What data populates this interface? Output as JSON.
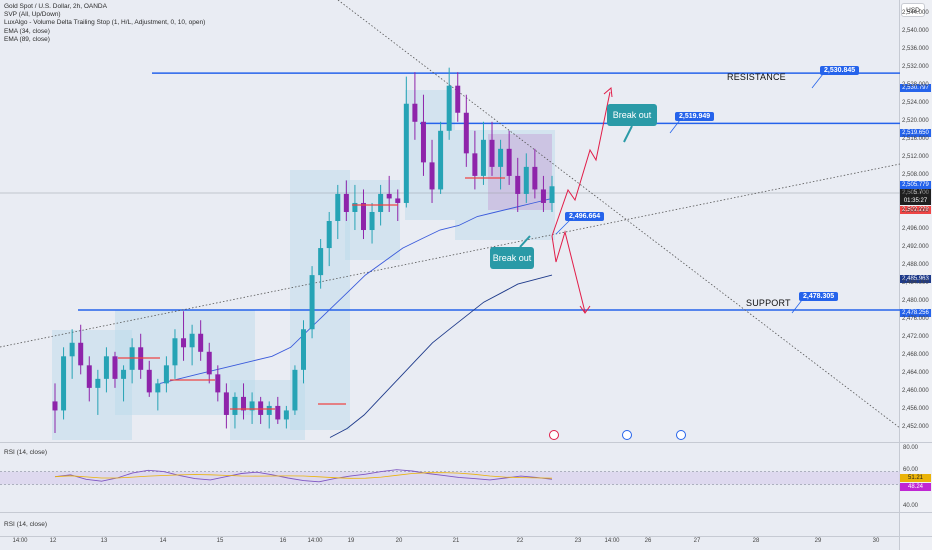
{
  "legend": {
    "title": "Gold Spot / U.S. Dollar, 2h, OANDA",
    "lines": [
      "SVP (All, Up/Down)",
      "LuxAlgo - Volume Delta Trailing Stop (1, H/L, Adjustment, 0, 10, open)",
      "EMA (34, close)",
      "EMA (89, close)"
    ]
  },
  "currency_button": "USD",
  "annotations": {
    "resistance_label": "RESISTANCE",
    "support_label": "SUPPORT",
    "breakout_up": "Break out",
    "breakout_down": "Break out",
    "tag_resistance": "2,530.845",
    "tag_mid": "2,519.949",
    "tag_pivot": "2,496.664",
    "tag_support": "2,478.305"
  },
  "axis_tags": [
    {
      "text": "2,530.797",
      "color": "#2563eb"
    },
    {
      "text": "2,519.650",
      "color": "#2563eb"
    },
    {
      "text": "2,505.779",
      "color": "#2563eb"
    },
    {
      "text": "2,505.700",
      "color": "#1f1f1f"
    },
    {
      "text": "01:35:27",
      "color": "#1f1f1f"
    },
    {
      "text": "2,502.228",
      "color": "#ef4444"
    },
    {
      "text": "2,485.963",
      "color": "#1e3a8a"
    },
    {
      "text": "2,478.256",
      "color": "#2563eb"
    }
  ],
  "rsi_panes": [
    {
      "label": "RSI (14, close)",
      "levels": [
        "80.00",
        "60.00",
        "51.21",
        "48.24",
        "40.00"
      ]
    },
    {
      "label": "RSI (14, close)"
    }
  ],
  "colors": {
    "up": "#26a3b5",
    "down": "#8e24aa",
    "level_line": "#2563eb",
    "ema34": "#3b5bdb",
    "ema89": "#1e3a8a",
    "arrow": "#e11d48"
  },
  "chart_data": {
    "type": "candlestick",
    "symbol": "Gold Spot / U.S. Dollar",
    "timeframe": "2h",
    "x_tick_labels": [
      "14:00",
      "12",
      "13",
      "14",
      "15",
      "16",
      "14:00",
      "19",
      "20",
      "21",
      "22",
      "23",
      "14:00",
      "26",
      "27",
      "28",
      "29",
      "30"
    ],
    "y_tick_labels": [
      "2,544.000",
      "2,540.000",
      "2,536.000",
      "2,532.000",
      "2,528.000",
      "2,524.000",
      "2,520.000",
      "2,516.000",
      "2,512.000",
      "2,508.000",
      "2,504.000",
      "2,500.000",
      "2,496.000",
      "2,492.000",
      "2,488.000",
      "2,484.000",
      "2,480.000",
      "2,476.000",
      "2,472.000",
      "2,468.000",
      "2,464.000",
      "2,460.000",
      "2,456.000",
      "2,452.000"
    ],
    "ylim": [
      2449,
      2547
    ],
    "horizontal_levels": [
      2530.797,
      2519.65,
      2478.256
    ],
    "last_price": 2505.7,
    "candles": [
      [
        2458,
        2462,
        2451,
        2456
      ],
      [
        2456,
        2470,
        2454,
        2468
      ],
      [
        2468,
        2474,
        2463,
        2471
      ],
      [
        2471,
        2475,
        2464,
        2466
      ],
      [
        2466,
        2468,
        2458,
        2461
      ],
      [
        2461,
        2465,
        2455,
        2463
      ],
      [
        2463,
        2470,
        2460,
        2468
      ],
      [
        2468,
        2469,
        2461,
        2463
      ],
      [
        2463,
        2466,
        2458,
        2465
      ],
      [
        2465,
        2472,
        2462,
        2470
      ],
      [
        2470,
        2473,
        2463,
        2465
      ],
      [
        2465,
        2467,
        2459,
        2460
      ],
      [
        2460,
        2463,
        2456,
        2462
      ],
      [
        2462,
        2468,
        2460,
        2466
      ],
      [
        2466,
        2474,
        2463,
        2472
      ],
      [
        2472,
        2478,
        2467,
        2470
      ],
      [
        2470,
        2475,
        2466,
        2473
      ],
      [
        2473,
        2476,
        2467,
        2469
      ],
      [
        2469,
        2471,
        2462,
        2464
      ],
      [
        2464,
        2466,
        2458,
        2460
      ],
      [
        2460,
        2462,
        2452,
        2455
      ],
      [
        2455,
        2460,
        2452,
        2459
      ],
      [
        2459,
        2462,
        2454,
        2456
      ],
      [
        2456,
        2460,
        2453,
        2458
      ],
      [
        2458,
        2459,
        2453,
        2455
      ],
      [
        2455,
        2458,
        2452,
        2457
      ],
      [
        2457,
        2459,
        2453,
        2454
      ],
      [
        2454,
        2457,
        2452,
        2456
      ],
      [
        2456,
        2466,
        2455,
        2465
      ],
      [
        2465,
        2476,
        2462,
        2474
      ],
      [
        2474,
        2488,
        2472,
        2486
      ],
      [
        2486,
        2494,
        2483,
        2492
      ],
      [
        2492,
        2500,
        2488,
        2498
      ],
      [
        2498,
        2506,
        2494,
        2504
      ],
      [
        2504,
        2507,
        2498,
        2500
      ],
      [
        2500,
        2506,
        2496,
        2502
      ],
      [
        2502,
        2505,
        2494,
        2496
      ],
      [
        2496,
        2502,
        2493,
        2500
      ],
      [
        2500,
        2506,
        2497,
        2504
      ],
      [
        2504,
        2508,
        2500,
        2503
      ],
      [
        2503,
        2505,
        2498,
        2502
      ],
      [
        2502,
        2530,
        2501,
        2524
      ],
      [
        2524,
        2531,
        2516,
        2520
      ],
      [
        2520,
        2526,
        2508,
        2511
      ],
      [
        2511,
        2516,
        2502,
        2505
      ],
      [
        2505,
        2520,
        2504,
        2518
      ],
      [
        2518,
        2532,
        2516,
        2528
      ],
      [
        2528,
        2531,
        2520,
        2522
      ],
      [
        2522,
        2526,
        2510,
        2513
      ],
      [
        2513,
        2518,
        2505,
        2508
      ],
      [
        2508,
        2520,
        2506,
        2516
      ],
      [
        2516,
        2520,
        2508,
        2510
      ],
      [
        2510,
        2516,
        2505,
        2514
      ],
      [
        2514,
        2518,
        2506,
        2508
      ],
      [
        2508,
        2512,
        2500,
        2504
      ],
      [
        2504,
        2513,
        2502,
        2510
      ],
      [
        2510,
        2514,
        2503,
        2505
      ],
      [
        2505,
        2508,
        2500,
        2502
      ],
      [
        2502,
        2508,
        2500,
        2505.7
      ]
    ],
    "ema34": [
      2462,
      2463,
      2464,
      2465,
      2466,
      2467,
      2468,
      2470,
      2474,
      2478,
      2482,
      2486,
      2489,
      2492,
      2494,
      2496,
      2497,
      2499,
      2500,
      2501,
      2502,
      2503
    ],
    "ema89": [
      2450,
      2452,
      2455,
      2459,
      2463,
      2467,
      2471,
      2474,
      2477,
      2480,
      2482,
      2484,
      2485,
      2486
    ],
    "rsi": [
      52,
      55,
      48,
      45,
      50,
      58,
      62,
      60,
      54,
      49,
      47,
      52,
      57,
      59,
      55,
      50,
      46,
      44,
      49,
      53,
      56,
      60,
      63,
      61,
      57,
      54,
      51,
      49,
      47,
      50,
      53,
      51,
      48
    ]
  }
}
